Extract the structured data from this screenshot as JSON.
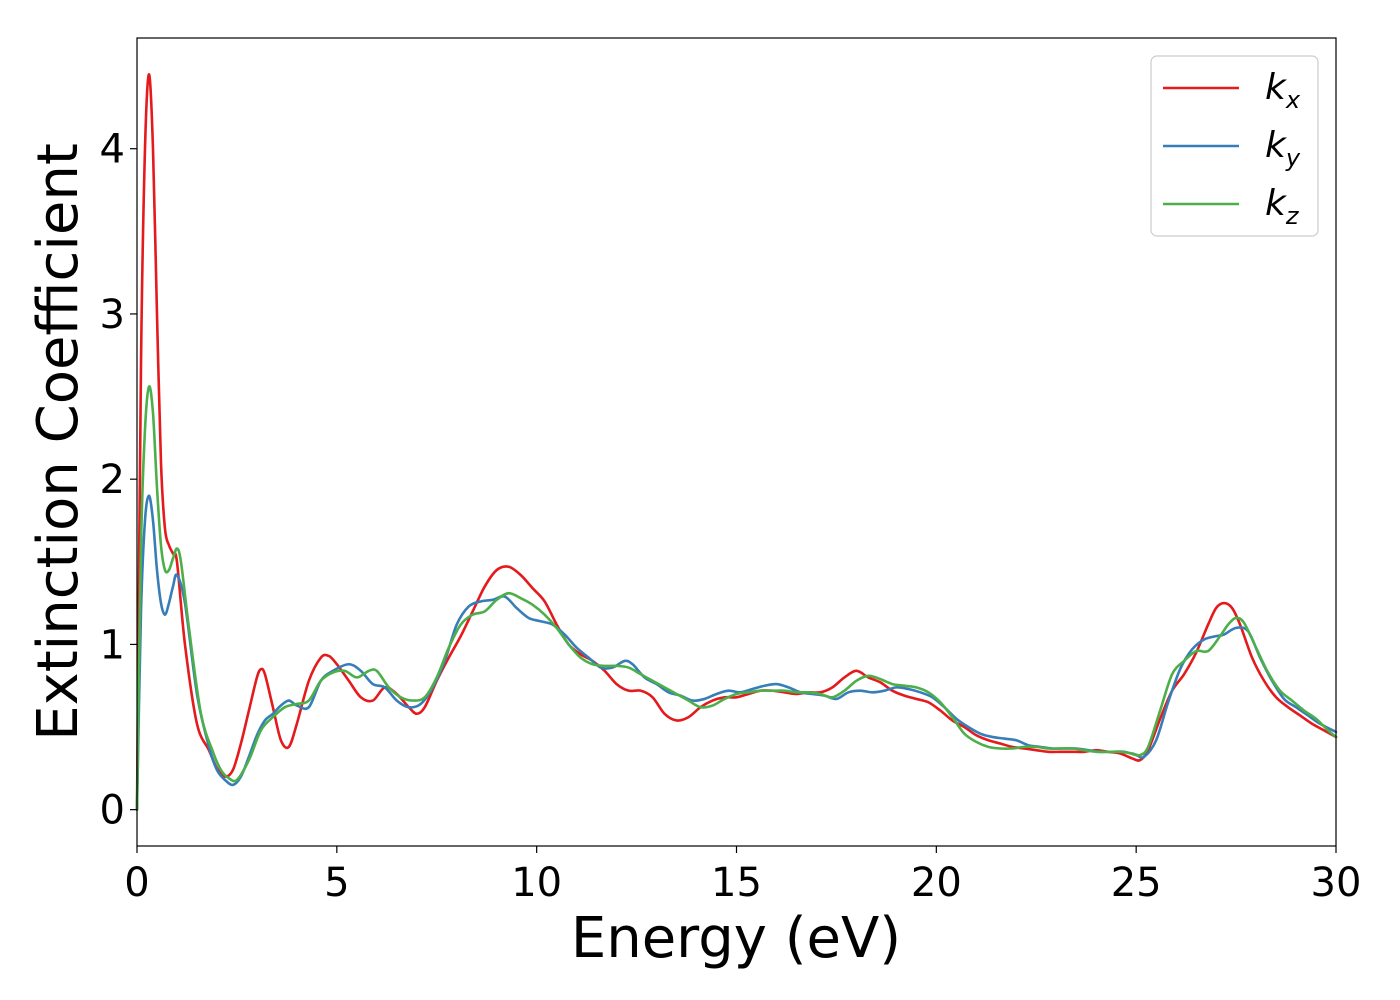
{
  "chart_data": {
    "type": "line",
    "xlabel": "Energy (eV)",
    "ylabel": "Extinction Coefficient",
    "xlim": [
      0,
      30
    ],
    "ylim": [
      -0.22,
      4.67
    ],
    "xticks": [
      "0",
      "5",
      "10",
      "15",
      "20",
      "25",
      "30"
    ],
    "yticks": [
      "0",
      "1",
      "2",
      "3",
      "4"
    ],
    "grid": false,
    "legend_position": "top-right",
    "series": [
      {
        "name": "k_x",
        "label_base": "k",
        "label_sub": "x",
        "color": "#e41a1c",
        "x": [
          0,
          0.1,
          0.2,
          0.3,
          0.4,
          0.5,
          0.6,
          0.7,
          0.8,
          0.9,
          1.0,
          1.2,
          1.5,
          1.8,
          2.0,
          2.2,
          2.4,
          2.6,
          2.8,
          3.0,
          3.1,
          3.2,
          3.4,
          3.6,
          3.8,
          4.0,
          4.3,
          4.6,
          4.8,
          5.0,
          5.3,
          5.6,
          5.9,
          6.2,
          6.5,
          6.8,
          7.0,
          7.2,
          7.5,
          7.8,
          8.1,
          8.4,
          8.7,
          9.0,
          9.3,
          9.6,
          9.9,
          10.2,
          10.5,
          10.8,
          11.1,
          11.4,
          11.7,
          12.0,
          12.3,
          12.6,
          12.9,
          13.2,
          13.5,
          13.8,
          14.1,
          14.4,
          14.7,
          15.0,
          15.3,
          15.6,
          15.9,
          16.2,
          16.5,
          16.8,
          17.1,
          17.4,
          17.7,
          18.0,
          18.3,
          18.6,
          18.9,
          19.2,
          19.5,
          19.8,
          20.1,
          20.4,
          20.7,
          21.0,
          21.3,
          21.6,
          21.9,
          22.2,
          22.5,
          22.8,
          23.1,
          23.4,
          23.7,
          24.0,
          24.3,
          24.6,
          24.9,
          25.1,
          25.3,
          25.6,
          25.9,
          26.2,
          26.5,
          26.8,
          27.0,
          27.2,
          27.4,
          27.6,
          27.9,
          28.2,
          28.5,
          28.8,
          29.1,
          29.4,
          29.7,
          30.0
        ],
        "y": [
          0,
          2.7,
          4.0,
          4.45,
          4.0,
          3.0,
          2.1,
          1.7,
          1.6,
          1.55,
          1.5,
          1.0,
          0.52,
          0.36,
          0.25,
          0.2,
          0.24,
          0.4,
          0.6,
          0.8,
          0.85,
          0.82,
          0.62,
          0.42,
          0.38,
          0.52,
          0.78,
          0.92,
          0.93,
          0.88,
          0.78,
          0.68,
          0.66,
          0.74,
          0.7,
          0.62,
          0.58,
          0.62,
          0.78,
          0.92,
          1.05,
          1.2,
          1.35,
          1.45,
          1.47,
          1.42,
          1.34,
          1.26,
          1.12,
          1.0,
          0.94,
          0.9,
          0.84,
          0.76,
          0.72,
          0.72,
          0.68,
          0.58,
          0.54,
          0.56,
          0.62,
          0.66,
          0.68,
          0.68,
          0.7,
          0.72,
          0.72,
          0.71,
          0.7,
          0.71,
          0.71,
          0.74,
          0.8,
          0.84,
          0.8,
          0.77,
          0.72,
          0.69,
          0.67,
          0.65,
          0.6,
          0.54,
          0.5,
          0.45,
          0.42,
          0.4,
          0.38,
          0.37,
          0.36,
          0.35,
          0.35,
          0.35,
          0.35,
          0.36,
          0.35,
          0.34,
          0.31,
          0.3,
          0.36,
          0.55,
          0.72,
          0.82,
          0.95,
          1.12,
          1.22,
          1.25,
          1.22,
          1.12,
          0.92,
          0.78,
          0.68,
          0.62,
          0.57,
          0.52,
          0.48,
          0.44
        ]
      },
      {
        "name": "k_y",
        "label_base": "k",
        "label_sub": "y",
        "color": "#377eb8",
        "x": [
          0,
          0.1,
          0.2,
          0.3,
          0.4,
          0.5,
          0.6,
          0.7,
          0.8,
          0.9,
          1.0,
          1.2,
          1.5,
          1.8,
          2.0,
          2.2,
          2.4,
          2.6,
          2.8,
          3.0,
          3.2,
          3.4,
          3.6,
          3.8,
          4.0,
          4.3,
          4.6,
          4.9,
          5.3,
          5.6,
          5.9,
          6.2,
          6.5,
          6.8,
          7.1,
          7.4,
          7.7,
          8.0,
          8.3,
          8.6,
          8.9,
          9.2,
          9.5,
          9.8,
          10.1,
          10.4,
          10.7,
          11.0,
          11.3,
          11.6,
          11.9,
          12.2,
          12.4,
          12.7,
          13.0,
          13.3,
          13.6,
          13.9,
          14.2,
          14.5,
          14.8,
          15.1,
          15.4,
          15.7,
          16.0,
          16.3,
          16.6,
          16.9,
          17.2,
          17.5,
          17.8,
          18.1,
          18.4,
          18.7,
          19.0,
          19.3,
          19.6,
          19.9,
          20.2,
          20.5,
          20.8,
          21.1,
          21.4,
          21.7,
          22.0,
          22.3,
          22.6,
          22.9,
          23.2,
          23.5,
          23.8,
          24.1,
          24.4,
          24.7,
          25.0,
          25.2,
          25.5,
          25.8,
          26.1,
          26.4,
          26.7,
          27.0,
          27.2,
          27.5,
          27.8,
          28.1,
          28.4,
          28.7,
          29.0,
          29.3,
          29.6,
          30.0
        ],
        "y": [
          0,
          1.2,
          1.75,
          1.9,
          1.75,
          1.45,
          1.25,
          1.18,
          1.25,
          1.35,
          1.42,
          1.25,
          0.7,
          0.38,
          0.24,
          0.18,
          0.15,
          0.2,
          0.32,
          0.45,
          0.54,
          0.58,
          0.63,
          0.66,
          0.63,
          0.62,
          0.78,
          0.84,
          0.88,
          0.84,
          0.76,
          0.74,
          0.66,
          0.62,
          0.64,
          0.74,
          0.9,
          1.12,
          1.23,
          1.26,
          1.27,
          1.29,
          1.22,
          1.16,
          1.14,
          1.12,
          1.06,
          0.98,
          0.92,
          0.86,
          0.86,
          0.9,
          0.88,
          0.8,
          0.76,
          0.71,
          0.69,
          0.66,
          0.67,
          0.7,
          0.72,
          0.71,
          0.73,
          0.75,
          0.76,
          0.74,
          0.71,
          0.7,
          0.69,
          0.67,
          0.71,
          0.72,
          0.71,
          0.72,
          0.74,
          0.73,
          0.71,
          0.68,
          0.62,
          0.55,
          0.5,
          0.46,
          0.44,
          0.43,
          0.42,
          0.39,
          0.38,
          0.37,
          0.37,
          0.37,
          0.36,
          0.35,
          0.35,
          0.35,
          0.33,
          0.32,
          0.42,
          0.65,
          0.85,
          0.97,
          1.03,
          1.05,
          1.06,
          1.1,
          1.08,
          0.92,
          0.78,
          0.67,
          0.62,
          0.57,
          0.52,
          0.47
        ]
      },
      {
        "name": "k_z",
        "label_base": "k",
        "label_sub": "z",
        "color": "#4daf4a",
        "x": [
          0,
          0.1,
          0.2,
          0.3,
          0.4,
          0.5,
          0.6,
          0.7,
          0.8,
          0.9,
          1.0,
          1.1,
          1.3,
          1.6,
          1.9,
          2.1,
          2.3,
          2.5,
          2.8,
          3.1,
          3.4,
          3.7,
          4.0,
          4.3,
          4.6,
          4.9,
          5.2,
          5.5,
          5.8,
          6.0,
          6.3,
          6.6,
          6.9,
          7.2,
          7.5,
          7.8,
          8.1,
          8.4,
          8.7,
          9.0,
          9.3,
          9.6,
          9.9,
          10.2,
          10.5,
          10.8,
          11.1,
          11.4,
          11.7,
          12.0,
          12.3,
          12.6,
          12.9,
          13.2,
          13.5,
          13.8,
          14.1,
          14.4,
          14.7,
          15.0,
          15.3,
          15.6,
          15.9,
          16.2,
          16.5,
          16.8,
          17.1,
          17.4,
          17.7,
          18.0,
          18.3,
          18.6,
          18.9,
          19.2,
          19.5,
          19.8,
          20.1,
          20.4,
          20.7,
          21.0,
          21.3,
          21.6,
          21.9,
          22.2,
          22.5,
          22.8,
          23.1,
          23.4,
          23.7,
          24.0,
          24.3,
          24.6,
          24.9,
          25.1,
          25.3,
          25.6,
          25.9,
          26.2,
          26.5,
          26.8,
          27.1,
          27.3,
          27.5,
          27.7,
          28.0,
          28.3,
          28.6,
          28.9,
          29.2,
          29.5,
          29.8,
          30.0
        ],
        "y": [
          0,
          1.6,
          2.3,
          2.56,
          2.4,
          1.95,
          1.6,
          1.45,
          1.45,
          1.52,
          1.58,
          1.5,
          1.1,
          0.58,
          0.35,
          0.24,
          0.19,
          0.18,
          0.3,
          0.48,
          0.56,
          0.62,
          0.64,
          0.66,
          0.78,
          0.83,
          0.84,
          0.8,
          0.84,
          0.84,
          0.74,
          0.68,
          0.66,
          0.68,
          0.8,
          0.98,
          1.12,
          1.18,
          1.2,
          1.27,
          1.31,
          1.28,
          1.24,
          1.18,
          1.1,
          1.0,
          0.92,
          0.88,
          0.87,
          0.87,
          0.86,
          0.82,
          0.78,
          0.74,
          0.7,
          0.66,
          0.62,
          0.63,
          0.67,
          0.7,
          0.71,
          0.72,
          0.72,
          0.72,
          0.71,
          0.71,
          0.7,
          0.68,
          0.72,
          0.78,
          0.81,
          0.79,
          0.76,
          0.75,
          0.74,
          0.71,
          0.65,
          0.56,
          0.46,
          0.41,
          0.38,
          0.37,
          0.37,
          0.38,
          0.38,
          0.37,
          0.37,
          0.37,
          0.36,
          0.35,
          0.35,
          0.35,
          0.34,
          0.33,
          0.38,
          0.6,
          0.82,
          0.9,
          0.96,
          0.96,
          1.05,
          1.12,
          1.16,
          1.13,
          0.98,
          0.83,
          0.72,
          0.66,
          0.6,
          0.55,
          0.48,
          0.44
        ]
      }
    ]
  }
}
